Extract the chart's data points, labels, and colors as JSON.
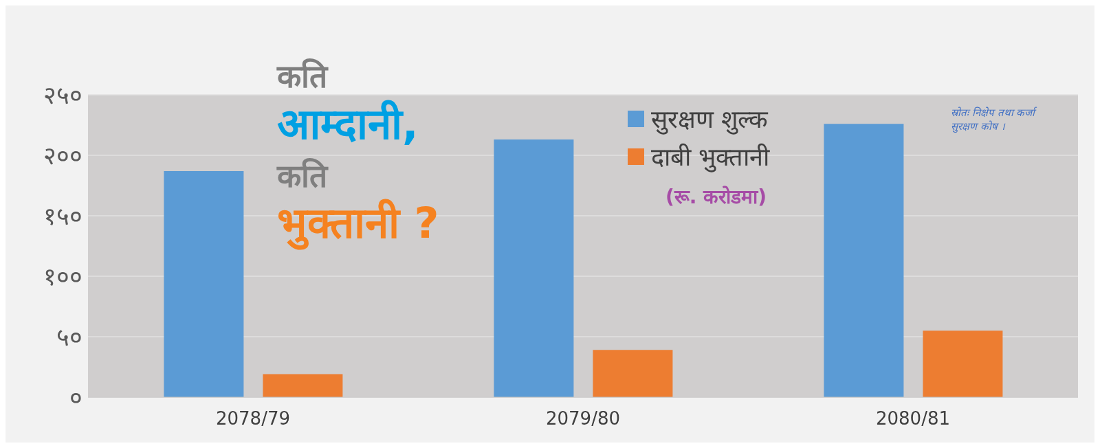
{
  "chart_data": {
    "type": "bar",
    "subtitle": "(रू. करोडमा)",
    "categories": [
      "2078/79",
      "2079/80",
      "2080/81"
    ],
    "series": [
      {
        "name": "सुरक्षण शुल्क",
        "color": "#5b9bd5",
        "values": [
          187,
          213,
          226
        ]
      },
      {
        "name": "दाबी भुक्तानी",
        "color": "#ed7d31",
        "values": [
          19,
          39,
          55
        ]
      }
    ],
    "ylim": [
      0,
      250
    ],
    "yticks": [
      {
        "value": 0,
        "label": "०"
      },
      {
        "value": 50,
        "label": "५०"
      },
      {
        "value": 100,
        "label": "१००"
      },
      {
        "value": 150,
        "label": "१५०"
      },
      {
        "value": 200,
        "label": "२००"
      },
      {
        "value": 250,
        "label": "२५०"
      }
    ],
    "grid": "y",
    "legend": "top",
    "annotations": [
      "कति",
      "आम्दानी,",
      "कति",
      "भुक्तानी ?",
      "स्रोतः निक्षेप तथा कर्जा सुरक्षण कोष ।"
    ]
  }
}
